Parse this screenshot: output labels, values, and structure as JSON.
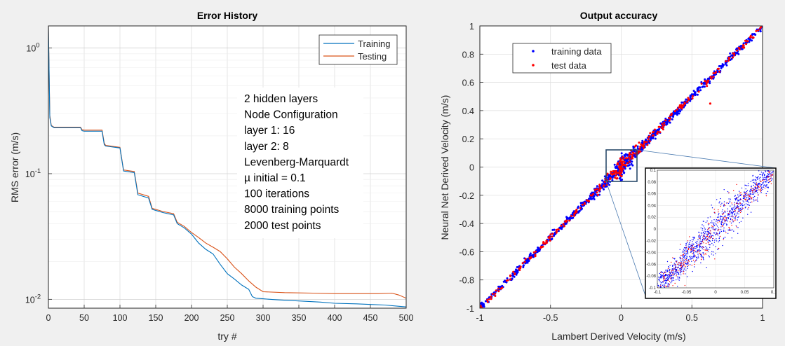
{
  "chart_data": [
    {
      "type": "line",
      "title": "Error History",
      "xlabel": "try #",
      "ylabel": "RMS error (m/s)",
      "yscale": "log",
      "xlim": [
        0,
        500
      ],
      "ylim": [
        0.0085,
        1.5
      ],
      "x_ticks": [
        "0",
        "50",
        "100",
        "150",
        "200",
        "250",
        "300",
        "350",
        "400",
        "450",
        "500"
      ],
      "y_ticks": [
        {
          "value": 1,
          "label": "10",
          "exp": "0"
        },
        {
          "value": 0.1,
          "label": "10",
          "exp": "-1"
        },
        {
          "value": 0.01,
          "label": "10",
          "exp": "-2"
        }
      ],
      "legend_position": "top-right",
      "series": [
        {
          "name": "Training",
          "color": "#0072BD",
          "x": [
            0,
            2,
            4,
            8,
            15,
            30,
            45,
            47,
            50,
            75,
            78,
            80,
            100,
            105,
            120,
            125,
            140,
            145,
            160,
            175,
            180,
            190,
            200,
            210,
            220,
            230,
            240,
            250,
            260,
            270,
            280,
            285,
            290,
            300,
            320,
            350,
            380,
            400,
            430,
            450,
            470,
            490,
            500
          ],
          "y": [
            1.5,
            0.28,
            0.24,
            0.232,
            0.232,
            0.232,
            0.232,
            0.22,
            0.218,
            0.218,
            0.17,
            0.166,
            0.16,
            0.105,
            0.102,
            0.068,
            0.064,
            0.052,
            0.049,
            0.047,
            0.04,
            0.037,
            0.033,
            0.028,
            0.025,
            0.023,
            0.019,
            0.016,
            0.0145,
            0.013,
            0.012,
            0.0105,
            0.0102,
            0.0101,
            0.0099,
            0.0097,
            0.0095,
            0.0093,
            0.0092,
            0.0091,
            0.009,
            0.0088,
            0.0087
          ]
        },
        {
          "name": "Testing",
          "color": "#D95319",
          "x": [
            0,
            2,
            4,
            8,
            15,
            30,
            45,
            47,
            50,
            75,
            78,
            80,
            100,
            105,
            120,
            125,
            140,
            145,
            160,
            175,
            180,
            190,
            200,
            210,
            220,
            230,
            240,
            250,
            260,
            270,
            280,
            290,
            300,
            330,
            370,
            400,
            430,
            460,
            480,
            490,
            500
          ],
          "y": [
            1.5,
            0.29,
            0.242,
            0.234,
            0.234,
            0.234,
            0.234,
            0.224,
            0.222,
            0.222,
            0.175,
            0.168,
            0.162,
            0.107,
            0.104,
            0.07,
            0.066,
            0.053,
            0.05,
            0.048,
            0.041,
            0.038,
            0.034,
            0.031,
            0.028,
            0.026,
            0.024,
            0.021,
            0.018,
            0.016,
            0.014,
            0.0125,
            0.0115,
            0.0113,
            0.0112,
            0.0111,
            0.0111,
            0.0111,
            0.0112,
            0.0108,
            0.0102
          ]
        }
      ],
      "annotation_lines": [
        "2 hidden layers",
        "Node Configuration",
        "  layer 1:  16",
        "  layer 2:  8",
        "Levenberg-Marquardt",
        "µ initial = 0.1",
        "100 iterations",
        "8000 training points",
        "2000 test points"
      ]
    },
    {
      "type": "scatter",
      "title": "Output accuracy",
      "xlabel": "Lambert Derived Velocity (m/s)",
      "ylabel": "Neural Net Derived Velocity (m/s)",
      "xlim": [
        -1,
        1
      ],
      "ylim": [
        -1,
        1
      ],
      "x_ticks": [
        "-1",
        "-0.5",
        "0",
        "0.5",
        "1"
      ],
      "y_ticks": [
        "-1",
        "-0.8",
        "-0.6",
        "-0.4",
        "-0.2",
        "0",
        "0.2",
        "0.4",
        "0.6",
        "0.8",
        "1"
      ],
      "legend_position": "top-left",
      "series": [
        {
          "name": "training data",
          "color": "#0000FF",
          "n_points": 8000,
          "relation": "y ≈ x",
          "noise_sd": 0.012
        },
        {
          "name": "test data",
          "color": "#FF0000",
          "n_points": 2000,
          "relation": "y ≈ x",
          "noise_sd": 0.012,
          "outlier": [
            0.63,
            0.45
          ]
        }
      ],
      "inset": {
        "zoom_box_x": [
          -0.1,
          0.1
        ],
        "zoom_box_y": [
          -0.1,
          0.1
        ],
        "x_ticks": [
          "-0.1",
          "-0.05",
          "0",
          "0.05",
          "0.1"
        ],
        "y_ticks": [
          "-0.1",
          "-0.08",
          "-0.06",
          "-0.04",
          "-0.02",
          "0",
          "0.02",
          "0.04",
          "0.06",
          "0.08",
          "0.1"
        ]
      }
    }
  ]
}
